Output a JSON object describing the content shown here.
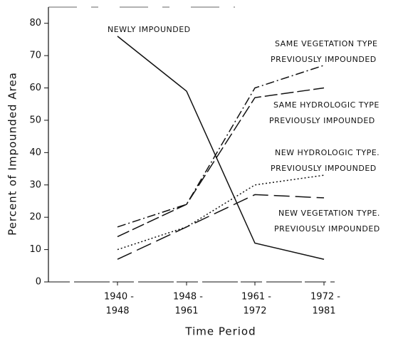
{
  "chart_data": {
    "type": "line",
    "xlabel": "Time Period",
    "ylabel": "Percent of Impounded Area",
    "categories": [
      [
        "1940 -",
        "1948"
      ],
      [
        "1948 -",
        "1961"
      ],
      [
        "1961 -",
        "1972"
      ],
      [
        "1972 -",
        "1981"
      ]
    ],
    "series": [
      {
        "name": [
          "NEWLY IMPOUNDED"
        ],
        "color": "#111111",
        "values": [
          76,
          59,
          12,
          7
        ]
      },
      {
        "name": [
          "SAME VEGETATION TYPE",
          "PREVIOUSLY IMPOUNDED"
        ],
        "color": "#111111",
        "values": [
          17,
          24,
          60,
          67
        ]
      },
      {
        "name": [
          "SAME HYDROLOGIC TYPE",
          "PREVIOUSLY IMPOUNDED"
        ],
        "color": "#111111",
        "values": [
          14,
          24,
          57,
          60
        ]
      },
      {
        "name": [
          "NEW HYDROLOGIC TYPE.",
          "PREVIOUSLY IMPOUNDED"
        ],
        "color": "#111111",
        "values": [
          10,
          17,
          30,
          33
        ]
      },
      {
        "name": [
          "NEW VEGETATION TYPE.",
          "PREVIOUSLY IMPOUNDED"
        ],
        "color": "#111111",
        "values": [
          7,
          17,
          27,
          26
        ]
      }
    ],
    "ylim": [
      0,
      85
    ],
    "yticks": [
      0,
      10,
      20,
      30,
      40,
      50,
      60,
      70,
      80
    ]
  }
}
